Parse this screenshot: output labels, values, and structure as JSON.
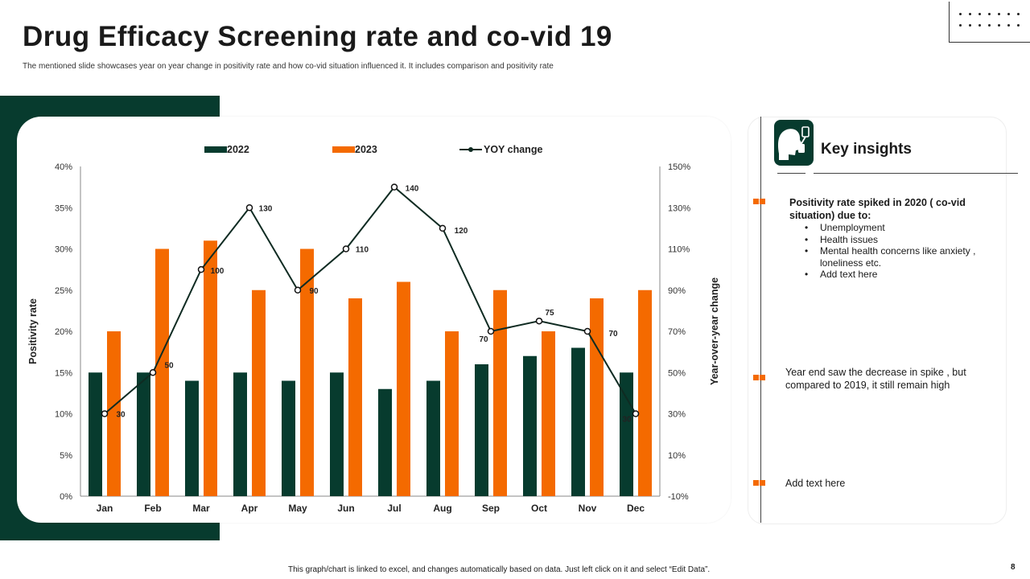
{
  "slide": {
    "title": "Drug Efficacy Screening rate and co-vid 19",
    "subtitle": "The mentioned  slide showcases year on year change in positivity rate and how co-vid situation influenced it. It includes comparison and positivity rate",
    "footer": "This graph/chart is linked to excel, and changes automatically based on data. Just left click on it and select “Edit Data”.",
    "page_number": "8"
  },
  "colors": {
    "dark_green": "#073b2e",
    "orange": "#f46a00",
    "line": "#0f2b22"
  },
  "insights": {
    "icon": "medical-swab-test-icon",
    "title": "Key insights",
    "point1_heading": "Positivity  rate spiked in 2020 ( co-vid situation)  due to:",
    "point1_bullets": [
      "Unemployment",
      "Health issues",
      "Mental health concerns like anxiety , loneliness etc.",
      "Add text here"
    ],
    "point2": "Year end saw the decrease in spike , but compared to 2019, it still remain high",
    "point3": "Add text here"
  },
  "chart_data": {
    "type": "bar",
    "categories": [
      "Jan",
      "Feb",
      "Mar",
      "Apr",
      "May",
      "Jun",
      "Jul",
      "Aug",
      "Sep",
      "Oct",
      "Nov",
      "Dec"
    ],
    "series": [
      {
        "name": "2022",
        "type": "bar",
        "axis": "left",
        "values": [
          15,
          15,
          14,
          15,
          14,
          15,
          13,
          14,
          16,
          17,
          18,
          15
        ]
      },
      {
        "name": "2023",
        "type": "bar",
        "axis": "left",
        "values": [
          20,
          30,
          31,
          25,
          30,
          24,
          26,
          20,
          25,
          20,
          24,
          25
        ]
      },
      {
        "name": "YOY change",
        "type": "line",
        "axis": "right",
        "values": [
          30,
          50,
          100,
          130,
          90,
          110,
          140,
          120,
          70,
          75,
          70,
          30
        ]
      }
    ],
    "data_labels": [
      "30",
      "50",
      "100",
      "130",
      "90",
      "110",
      "140",
      "120",
      "70",
      "75",
      "70",
      "30"
    ],
    "ylabel": "Positivity rate",
    "y2label": "Year-over-year change",
    "ylim": [
      0,
      40
    ],
    "yticks": [
      "0%",
      "5%",
      "10%",
      "15%",
      "20%",
      "25%",
      "30%",
      "35%",
      "40%"
    ],
    "y2lim": [
      -10,
      150
    ],
    "y2ticks": [
      "-10%",
      "10%",
      "30%",
      "50%",
      "70%",
      "90%",
      "110%",
      "130%",
      "150%"
    ],
    "legend": [
      "2022",
      "2023",
      "YOY change"
    ],
    "legend_position": "top",
    "grid": false
  }
}
